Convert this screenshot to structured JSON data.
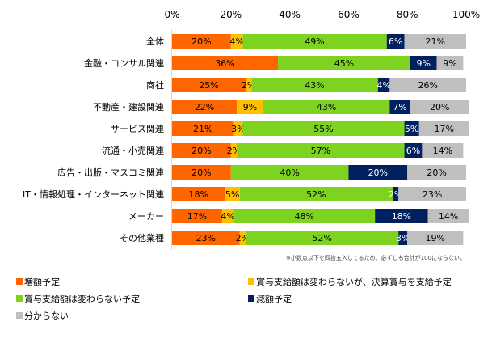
{
  "chart_data": {
    "type": "bar",
    "orientation": "horizontal",
    "stacked": true,
    "title": "",
    "xlabel": "",
    "ylabel": "",
    "xlim": [
      0,
      100
    ],
    "x_ticks": [
      "0%",
      "20%",
      "40%",
      "60%",
      "80%",
      "100%"
    ],
    "x_tick_values": [
      0,
      20,
      40,
      60,
      80,
      100
    ],
    "grid": false,
    "legend_position": "bottom",
    "categories": [
      "全体",
      "金融・コンサル関連",
      "商社",
      "不動産・建設関連",
      "サービス関連",
      "流通・小売関連",
      "広告・出版・マスコミ関連",
      "IT・情報処理・インターネット関連",
      "メーカー",
      "その他業種"
    ],
    "series": [
      {
        "name": "増額予定",
        "color": "#ff6600",
        "label_color": "#000000",
        "values": [
          20,
          36,
          25,
          22,
          21,
          20,
          20,
          18,
          17,
          23
        ]
      },
      {
        "name": "賞与支給額は変わらないが、決算賞与を支給予定",
        "color": "#ffc000",
        "label_color": "#000000",
        "values": [
          4,
          0,
          2,
          9,
          3,
          2,
          0,
          5,
          4,
          2
        ]
      },
      {
        "name": "賞与支給額は変わらない予定",
        "color": "#7ed321",
        "label_color": "#000000",
        "values": [
          49,
          45,
          43,
          43,
          55,
          57,
          40,
          52,
          48,
          52
        ]
      },
      {
        "name": "減額予定",
        "color": "#002060",
        "label_color": "#ffffff",
        "values": [
          6,
          9,
          4,
          7,
          5,
          6,
          20,
          2,
          18,
          3
        ]
      },
      {
        "name": "分からない",
        "color": "#bfbfbf",
        "label_color": "#000000",
        "values": [
          21,
          9,
          26,
          20,
          17,
          14,
          20,
          23,
          14,
          19
        ]
      }
    ],
    "value_suffix": "%",
    "annotation": "※小数点以下を四捨五入してるため、必ずしも合計が100にならない。"
  }
}
